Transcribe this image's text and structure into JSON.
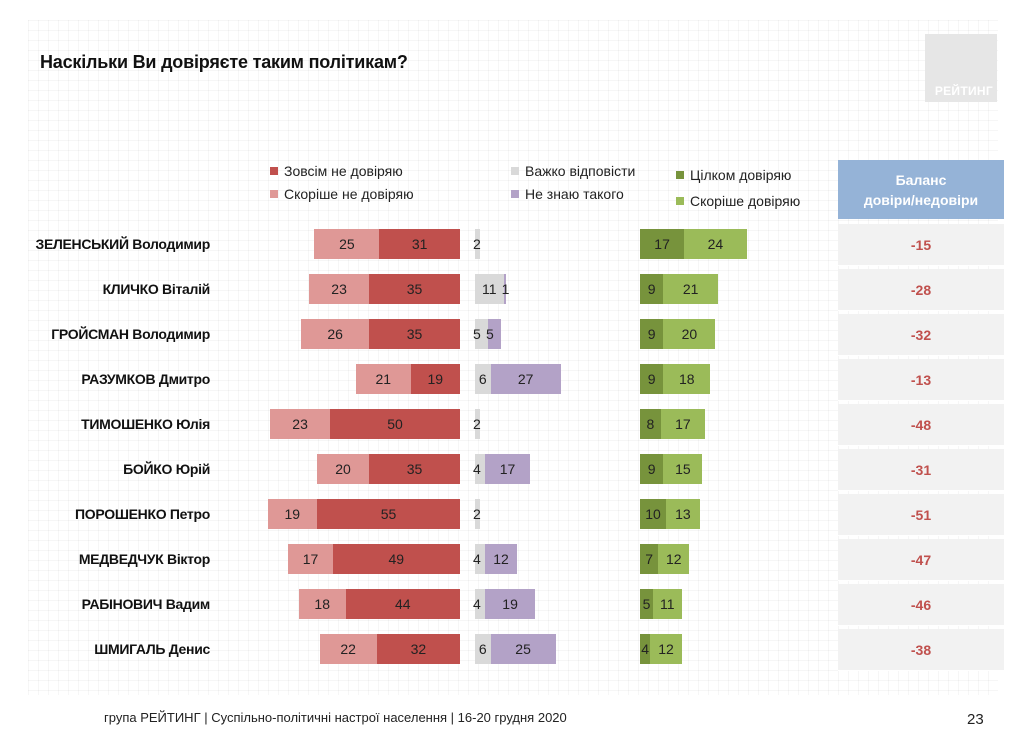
{
  "title": "Наскільки Ви довіряєте таким політикам?",
  "logo_text": "РЕЙТИНГ",
  "legend": {
    "fully_distrust": "Зовсім не довіряю",
    "rather_distrust": "Скоріше не довіряю",
    "hard_to_say": "Важко відповісти",
    "dont_know": "Не знаю такого",
    "fully_trust": "Цілком довіряю",
    "rather_trust": "Скоріше довіряю"
  },
  "balance_header_line1": "Баланс",
  "balance_header_line2": "довіри/недовіри",
  "footer": "група РЕЙТИНГ | Суспільно-політичні настрої населення | 16-20 грудня 2020",
  "page_number": "23",
  "colors": {
    "fully_distrust": "#c0504d",
    "rather_distrust": "#df9896",
    "hard_to_say": "#d9d9d9",
    "dont_know": "#b3a2c7",
    "fully_trust": "#77933c",
    "rather_trust": "#9bbb59",
    "balance_header": "#95b3d7",
    "balance_text": "#c0504d"
  },
  "chart_data": {
    "type": "bar",
    "orientation": "horizontal",
    "categories": [
      "ЗЕЛЕНСЬКИЙ Володимир",
      "КЛИЧКО Віталій",
      "ГРОЙСМАН Володимир",
      "РАЗУМКОВ Дмитро",
      "ТИМОШЕНКО Юлія",
      "БОЙКО Юрій",
      "ПОРОШЕНКО Петро",
      "МЕДВЕДЧУК Віктор",
      "РАБІНОВИЧ Вадим",
      "ШМИГАЛЬ Денис"
    ],
    "series": [
      {
        "name": "Зовсім не довіряю",
        "values": [
          31,
          35,
          35,
          19,
          50,
          35,
          55,
          49,
          44,
          32
        ]
      },
      {
        "name": "Скоріше не довіряю",
        "values": [
          25,
          23,
          26,
          21,
          23,
          20,
          19,
          17,
          18,
          22
        ]
      },
      {
        "name": "Важко відповісти",
        "values": [
          2,
          11,
          5,
          6,
          2,
          4,
          2,
          4,
          4,
          6
        ]
      },
      {
        "name": "Не знаю такого",
        "values": [
          0,
          1,
          5,
          27,
          0,
          17,
          0,
          12,
          19,
          25
        ]
      },
      {
        "name": "Цілком довіряю",
        "values": [
          17,
          9,
          9,
          9,
          8,
          9,
          10,
          7,
          5,
          4
        ]
      },
      {
        "name": "Скоріше довіряю",
        "values": [
          24,
          21,
          20,
          18,
          17,
          15,
          13,
          12,
          11,
          12
        ]
      }
    ],
    "balance": {
      "name": "Баланс довіри/недовіри",
      "values": [
        -15,
        -28,
        -32,
        -13,
        -48,
        -31,
        -51,
        -47,
        -46,
        -38
      ]
    },
    "data_labels": {
      "Важко відповісти": [
        "2",
        "11",
        "5",
        "6",
        "2",
        "4",
        "2",
        "4",
        "4",
        "6"
      ],
      "Не знаю такого": [
        "",
        "1",
        "5",
        "27",
        "",
        "17",
        "",
        "12",
        "19",
        "25"
      ]
    }
  }
}
